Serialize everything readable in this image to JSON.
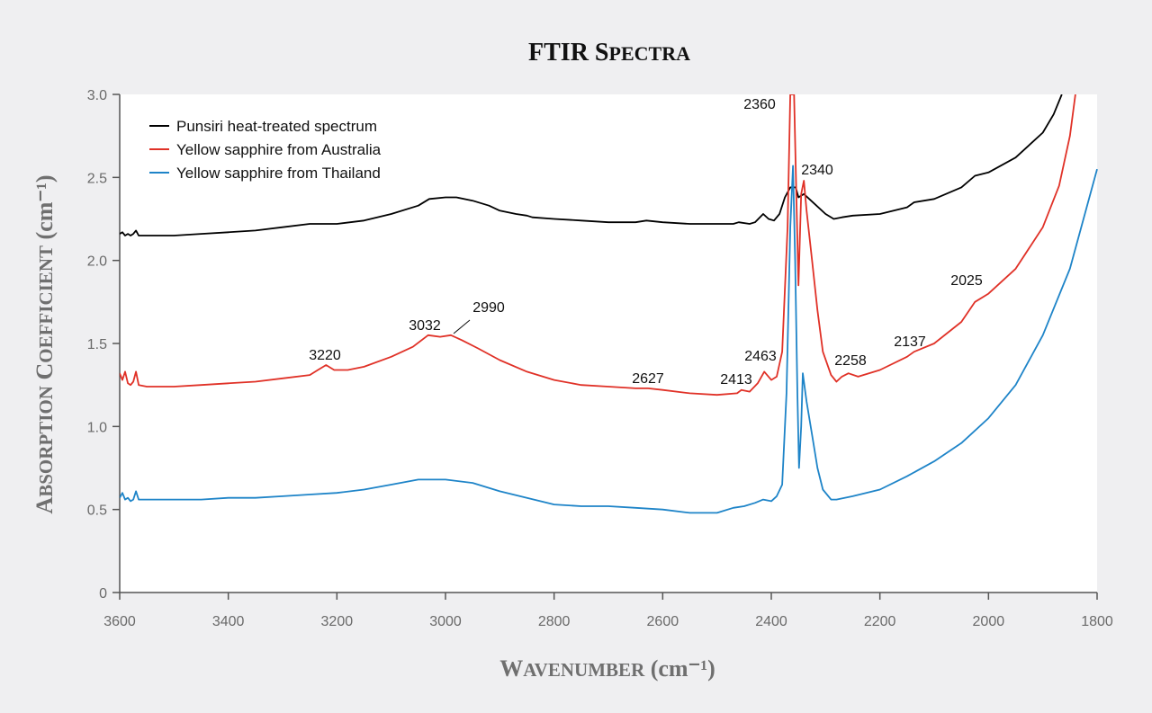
{
  "chart_data": {
    "type": "line",
    "title": "FTIR Spectra",
    "xlabel": "Wavenumber (cm⁻¹)",
    "ylabel": "Absorption Coefficient (cm⁻¹)",
    "xlim": [
      3600,
      1800
    ],
    "ylim": [
      0,
      3.0
    ],
    "x_reversed": true,
    "xticks": [
      3600,
      3400,
      3200,
      3000,
      2800,
      2600,
      2400,
      2200,
      2000,
      1800
    ],
    "yticks": [
      0,
      0.5,
      1.0,
      1.5,
      2.0,
      2.5,
      3.0
    ],
    "ytick_labels": [
      "0",
      "0.5",
      "1.0",
      "1.5",
      "2.0",
      "2.5",
      "3.0"
    ],
    "grid": false,
    "legend_position": "top-left",
    "series": [
      {
        "name": "Punsiri heat-treated spectrum",
        "color": "#000000",
        "points": [
          [
            3600,
            2.16
          ],
          [
            3595,
            2.17
          ],
          [
            3590,
            2.15
          ],
          [
            3585,
            2.16
          ],
          [
            3580,
            2.15
          ],
          [
            3575,
            2.16
          ],
          [
            3570,
            2.18
          ],
          [
            3565,
            2.15
          ],
          [
            3550,
            2.15
          ],
          [
            3500,
            2.15
          ],
          [
            3450,
            2.16
          ],
          [
            3400,
            2.17
          ],
          [
            3350,
            2.18
          ],
          [
            3300,
            2.2
          ],
          [
            3250,
            2.22
          ],
          [
            3200,
            2.22
          ],
          [
            3150,
            2.24
          ],
          [
            3100,
            2.28
          ],
          [
            3050,
            2.33
          ],
          [
            3030,
            2.37
          ],
          [
            3000,
            2.38
          ],
          [
            2980,
            2.38
          ],
          [
            2950,
            2.36
          ],
          [
            2920,
            2.33
          ],
          [
            2900,
            2.3
          ],
          [
            2870,
            2.28
          ],
          [
            2850,
            2.27
          ],
          [
            2840,
            2.26
          ],
          [
            2800,
            2.25
          ],
          [
            2750,
            2.24
          ],
          [
            2700,
            2.23
          ],
          [
            2650,
            2.23
          ],
          [
            2630,
            2.24
          ],
          [
            2600,
            2.23
          ],
          [
            2550,
            2.22
          ],
          [
            2500,
            2.22
          ],
          [
            2470,
            2.22
          ],
          [
            2460,
            2.23
          ],
          [
            2440,
            2.22
          ],
          [
            2430,
            2.23
          ],
          [
            2415,
            2.28
          ],
          [
            2405,
            2.25
          ],
          [
            2395,
            2.24
          ],
          [
            2385,
            2.28
          ],
          [
            2375,
            2.38
          ],
          [
            2365,
            2.44
          ],
          [
            2355,
            2.44
          ],
          [
            2350,
            2.38
          ],
          [
            2345,
            2.39
          ],
          [
            2340,
            2.4
          ],
          [
            2330,
            2.37
          ],
          [
            2320,
            2.34
          ],
          [
            2300,
            2.28
          ],
          [
            2285,
            2.25
          ],
          [
            2270,
            2.26
          ],
          [
            2250,
            2.27
          ],
          [
            2200,
            2.28
          ],
          [
            2150,
            2.32
          ],
          [
            2137,
            2.35
          ],
          [
            2100,
            2.37
          ],
          [
            2050,
            2.44
          ],
          [
            2025,
            2.51
          ],
          [
            2000,
            2.53
          ],
          [
            1950,
            2.62
          ],
          [
            1900,
            2.77
          ],
          [
            1880,
            2.88
          ],
          [
            1865,
            3.0
          ]
        ]
      },
      {
        "name": "Yellow sapphire from Australia",
        "color": "#e03127",
        "points": [
          [
            3600,
            1.32
          ],
          [
            3595,
            1.28
          ],
          [
            3590,
            1.33
          ],
          [
            3585,
            1.26
          ],
          [
            3580,
            1.25
          ],
          [
            3575,
            1.27
          ],
          [
            3570,
            1.33
          ],
          [
            3565,
            1.25
          ],
          [
            3550,
            1.24
          ],
          [
            3500,
            1.24
          ],
          [
            3450,
            1.25
          ],
          [
            3400,
            1.26
          ],
          [
            3350,
            1.27
          ],
          [
            3300,
            1.29
          ],
          [
            3250,
            1.31
          ],
          [
            3235,
            1.34
          ],
          [
            3220,
            1.37
          ],
          [
            3205,
            1.34
          ],
          [
            3180,
            1.34
          ],
          [
            3150,
            1.36
          ],
          [
            3100,
            1.42
          ],
          [
            3060,
            1.48
          ],
          [
            3032,
            1.55
          ],
          [
            3010,
            1.54
          ],
          [
            2990,
            1.55
          ],
          [
            2970,
            1.52
          ],
          [
            2940,
            1.47
          ],
          [
            2900,
            1.4
          ],
          [
            2850,
            1.33
          ],
          [
            2800,
            1.28
          ],
          [
            2750,
            1.25
          ],
          [
            2700,
            1.24
          ],
          [
            2650,
            1.23
          ],
          [
            2627,
            1.23
          ],
          [
            2600,
            1.22
          ],
          [
            2550,
            1.2
          ],
          [
            2500,
            1.19
          ],
          [
            2463,
            1.2
          ],
          [
            2455,
            1.22
          ],
          [
            2440,
            1.21
          ],
          [
            2425,
            1.26
          ],
          [
            2413,
            1.33
          ],
          [
            2400,
            1.28
          ],
          [
            2390,
            1.3
          ],
          [
            2380,
            1.45
          ],
          [
            2370,
            2.2
          ],
          [
            2365,
            3.0
          ],
          [
            2358,
            3.0
          ],
          [
            2354,
            2.4
          ],
          [
            2350,
            1.85
          ],
          [
            2345,
            2.4
          ],
          [
            2340,
            2.48
          ],
          [
            2335,
            2.3
          ],
          [
            2325,
            2.0
          ],
          [
            2315,
            1.7
          ],
          [
            2305,
            1.45
          ],
          [
            2290,
            1.31
          ],
          [
            2280,
            1.27
          ],
          [
            2270,
            1.3
          ],
          [
            2258,
            1.32
          ],
          [
            2240,
            1.3
          ],
          [
            2200,
            1.34
          ],
          [
            2150,
            1.42
          ],
          [
            2137,
            1.45
          ],
          [
            2100,
            1.5
          ],
          [
            2050,
            1.63
          ],
          [
            2025,
            1.75
          ],
          [
            2000,
            1.8
          ],
          [
            1950,
            1.95
          ],
          [
            1900,
            2.2
          ],
          [
            1870,
            2.45
          ],
          [
            1850,
            2.75
          ],
          [
            1840,
            3.0
          ]
        ]
      },
      {
        "name": "Yellow sapphire from Thailand",
        "color": "#1e84c8",
        "points": [
          [
            3600,
            0.57
          ],
          [
            3595,
            0.6
          ],
          [
            3590,
            0.56
          ],
          [
            3585,
            0.57
          ],
          [
            3580,
            0.55
          ],
          [
            3575,
            0.56
          ],
          [
            3570,
            0.61
          ],
          [
            3565,
            0.56
          ],
          [
            3550,
            0.56
          ],
          [
            3500,
            0.56
          ],
          [
            3450,
            0.56
          ],
          [
            3400,
            0.57
          ],
          [
            3350,
            0.57
          ],
          [
            3300,
            0.58
          ],
          [
            3250,
            0.59
          ],
          [
            3200,
            0.6
          ],
          [
            3150,
            0.62
          ],
          [
            3100,
            0.65
          ],
          [
            3050,
            0.68
          ],
          [
            3000,
            0.68
          ],
          [
            2950,
            0.66
          ],
          [
            2900,
            0.61
          ],
          [
            2850,
            0.57
          ],
          [
            2800,
            0.53
          ],
          [
            2750,
            0.52
          ],
          [
            2700,
            0.52
          ],
          [
            2650,
            0.51
          ],
          [
            2600,
            0.5
          ],
          [
            2550,
            0.48
          ],
          [
            2500,
            0.48
          ],
          [
            2470,
            0.51
          ],
          [
            2450,
            0.52
          ],
          [
            2430,
            0.54
          ],
          [
            2415,
            0.56
          ],
          [
            2400,
            0.55
          ],
          [
            2390,
            0.58
          ],
          [
            2380,
            0.65
          ],
          [
            2372,
            1.2
          ],
          [
            2365,
            2.2
          ],
          [
            2360,
            2.57
          ],
          [
            2356,
            2.0
          ],
          [
            2352,
            1.2
          ],
          [
            2349,
            0.75
          ],
          [
            2345,
            1.0
          ],
          [
            2342,
            1.32
          ],
          [
            2335,
            1.15
          ],
          [
            2325,
            0.95
          ],
          [
            2315,
            0.75
          ],
          [
            2305,
            0.62
          ],
          [
            2290,
            0.56
          ],
          [
            2280,
            0.56
          ],
          [
            2250,
            0.58
          ],
          [
            2200,
            0.62
          ],
          [
            2150,
            0.7
          ],
          [
            2100,
            0.79
          ],
          [
            2050,
            0.9
          ],
          [
            2000,
            1.05
          ],
          [
            1950,
            1.25
          ],
          [
            1900,
            1.55
          ],
          [
            1850,
            1.95
          ],
          [
            1800,
            2.55
          ]
        ]
      }
    ],
    "annotations": [
      {
        "label": "2360",
        "series": 1,
        "x": 2360
      },
      {
        "label": "2340",
        "series": 1,
        "x": 2340
      },
      {
        "label": "3220",
        "series": 1,
        "x": 3220
      },
      {
        "label": "3032",
        "series": 1,
        "x": 3032
      },
      {
        "label": "2990",
        "series": 1,
        "x": 2990
      },
      {
        "label": "2627",
        "series": 1,
        "x": 2627
      },
      {
        "label": "2413",
        "series": 1,
        "x": 2413
      },
      {
        "label": "2463",
        "series": 1,
        "x": 2463
      },
      {
        "label": "2258",
        "series": 1,
        "x": 2258
      },
      {
        "label": "2137",
        "series": 1,
        "x": 2137
      },
      {
        "label": "2025",
        "series": 1,
        "x": 2025
      }
    ]
  }
}
